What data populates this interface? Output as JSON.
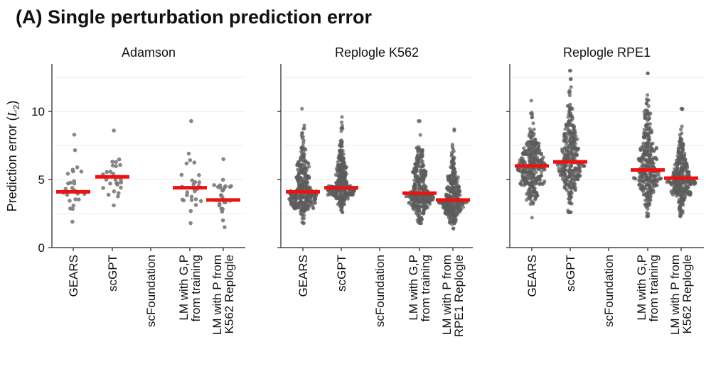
{
  "chart_data": {
    "type": "scatter",
    "title": "(A) Single perturbation prediction error",
    "ylabel": "Prediction error (L2)",
    "ylabel_parts": {
      "text": "Prediction error (",
      "var": "L",
      "sub": "2",
      "close": ")"
    },
    "ylim": [
      0,
      13.5
    ],
    "yticks": [
      0,
      5,
      10
    ],
    "grid": true,
    "panels": [
      {
        "name": "Adamson",
        "categories": [
          {
            "lines": [
              "GEARS"
            ],
            "median": 4.1,
            "n": 26,
            "min": 1.9,
            "max": 8.3,
            "density": "sparse"
          },
          {
            "lines": [
              "scGPT"
            ],
            "median": 5.2,
            "n": 28,
            "min": 3.1,
            "max": 8.6,
            "density": "sparse"
          },
          {
            "lines": [
              "scFoundation"
            ],
            "median": null,
            "n": 0,
            "min": null,
            "max": null,
            "density": "none"
          },
          {
            "lines": [
              "LM with G,P",
              "from training"
            ],
            "median": 4.4,
            "n": 27,
            "min": 1.8,
            "max": 9.3,
            "density": "sparse"
          },
          {
            "lines": [
              "LM with P from",
              "K562 Replogle"
            ],
            "median": 3.5,
            "n": 26,
            "min": 1.5,
            "max": 6.5,
            "density": "sparse"
          }
        ]
      },
      {
        "name": "Replogle K562",
        "categories": [
          {
            "lines": [
              "GEARS"
            ],
            "median": 4.1,
            "n": 340,
            "min": 1.8,
            "max": 10.2,
            "density": "dense"
          },
          {
            "lines": [
              "scGPT"
            ],
            "median": 4.4,
            "n": 340,
            "min": 2.6,
            "max": 9.6,
            "density": "dense"
          },
          {
            "lines": [
              "scFoundation"
            ],
            "median": null,
            "n": 0,
            "min": null,
            "max": null,
            "density": "none"
          },
          {
            "lines": [
              "LM with G,P",
              "from training"
            ],
            "median": 4.0,
            "n": 340,
            "min": 1.8,
            "max": 9.3,
            "density": "dense"
          },
          {
            "lines": [
              "LM with P from",
              "RPE1 Replogle"
            ],
            "median": 3.5,
            "n": 340,
            "min": 1.4,
            "max": 8.7,
            "density": "dense"
          }
        ]
      },
      {
        "name": "Replogle RPE1",
        "categories": [
          {
            "lines": [
              "GEARS"
            ],
            "median": 6.0,
            "n": 330,
            "min": 2.2,
            "max": 10.8,
            "density": "dense"
          },
          {
            "lines": [
              "scGPT"
            ],
            "median": 6.3,
            "n": 330,
            "min": 2.6,
            "max": 13.0,
            "density": "dense"
          },
          {
            "lines": [
              "scFoundation"
            ],
            "median": null,
            "n": 0,
            "min": null,
            "max": null,
            "density": "none"
          },
          {
            "lines": [
              "LM with G,P",
              "from training"
            ],
            "median": 5.7,
            "n": 330,
            "min": 2.3,
            "max": 12.8,
            "density": "dense"
          },
          {
            "lines": [
              "LM with P from",
              "K562 Replogle"
            ],
            "median": 5.1,
            "n": 330,
            "min": 2.3,
            "max": 10.2,
            "density": "dense"
          }
        ]
      }
    ]
  },
  "colors": {
    "points": "#5c5c5c",
    "median": "#ee1111",
    "axis": "#222222",
    "grid": "#ebebeb"
  }
}
